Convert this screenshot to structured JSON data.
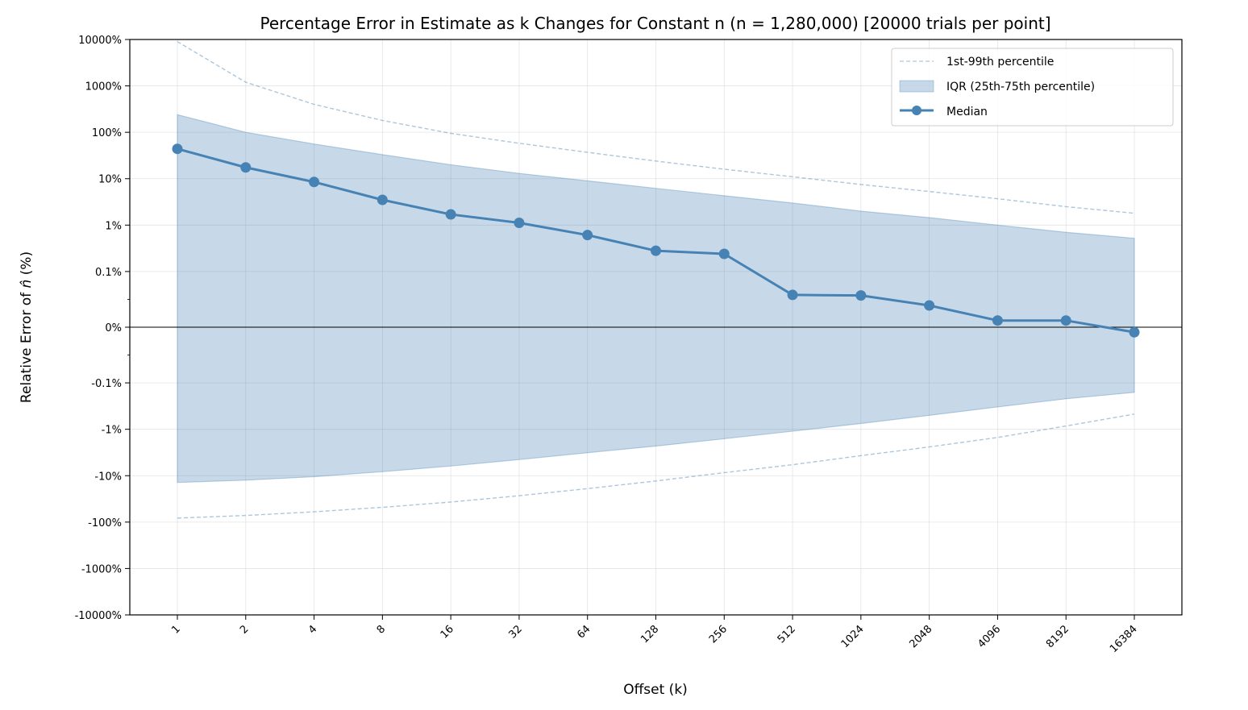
{
  "chart_data": {
    "type": "line",
    "title": "Percentage Error in Estimate as k Changes for Constant n (n = 1,280,000)  [20000 trials per point]",
    "xlabel": "Offset (k)",
    "ylabel": "Relative Error of n̂ (%)",
    "ylabel_prefix": "Relative Error of ",
    "ylabel_symbol": "n̂",
    "ylabel_suffix": " (%)",
    "yscale": "symlog",
    "ylim": [
      -10000,
      10000
    ],
    "grid": true,
    "legend_position": "top-right",
    "x_tick_labels": [
      "1",
      "2",
      "4",
      "8",
      "16",
      "32",
      "64",
      "128",
      "256",
      "512",
      "1024",
      "2048",
      "4096",
      "8192",
      "16384"
    ],
    "y_tick_labels": [
      "10000%",
      "1000%",
      "100%",
      "10%",
      "1%",
      "0.1%",
      "0%",
      "-0.1%",
      "-1%",
      "-10%",
      "-100%",
      "-1000%",
      "-10000%"
    ],
    "y_tick_values": [
      10000,
      1000,
      100,
      10,
      1,
      0.1,
      0,
      -0.1,
      -1,
      -10,
      -100,
      -1000,
      -10000
    ],
    "x": [
      1,
      2,
      4,
      8,
      16,
      32,
      64,
      128,
      256,
      512,
      1024,
      2048,
      4096,
      8192,
      16384
    ],
    "series": [
      {
        "name": "1st-99th percentile",
        "kind": "percentile-band",
        "upper": [
          9000,
          1200,
          400,
          180,
          95,
          58,
          37,
          24,
          16,
          11,
          7.5,
          5.3,
          3.7,
          2.5,
          1.8
        ],
        "lower": [
          -82,
          -72,
          -60,
          -48,
          -37,
          -27,
          -19,
          -13,
          -8.6,
          -5.8,
          -3.7,
          -2.4,
          -1.5,
          -0.85,
          -0.47
        ]
      },
      {
        "name": "IQR (25th-75th percentile)",
        "kind": "iqr-band",
        "upper": [
          240,
          100,
          56,
          33,
          20,
          13,
          9,
          6.2,
          4.3,
          3,
          2,
          1.45,
          1,
          0.7,
          0.52
        ],
        "lower": [
          -14,
          -12.5,
          -10.5,
          -8.2,
          -6.2,
          -4.5,
          -3.2,
          -2.3,
          -1.6,
          -1.1,
          -0.75,
          -0.5,
          -0.33,
          -0.22,
          -0.16
        ]
      },
      {
        "name": "Median",
        "kind": "median-line",
        "values": [
          44,
          17.5,
          8.5,
          3.5,
          1.7,
          1.12,
          0.61,
          0.28,
          0.24,
          0.058,
          0.057,
          0.039,
          0.012,
          0.012,
          -0.009
        ]
      }
    ],
    "colors": {
      "median": "#4682b4",
      "iqr_fill": "#4682b4",
      "percentile_line": "#4682b4",
      "grid": "#d9d9d9",
      "zero_line": "#000000"
    }
  }
}
